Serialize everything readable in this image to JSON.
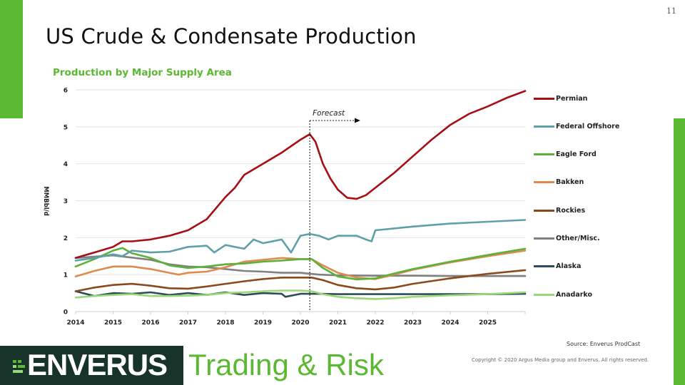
{
  "page_number": "11",
  "title": "US Crude & Condensate Production",
  "subtitle": "Production  by Major Supply Area",
  "source": "Source:  Enverus ProdCast",
  "copyright": "Copyright  © 2020 Argus Media group and Enverus.  All rights reserved.",
  "brand": {
    "logo_text": "ENVERUS",
    "tagline": "Trading & Risk",
    "colors": {
      "accent_green": "#5bb832",
      "dark_green": "#17332a"
    }
  },
  "chart_data": {
    "type": "line",
    "title": "Production  by Major Supply Area",
    "xlabel": "",
    "ylabel": "MMBbl/d",
    "xlim": [
      2014,
      2026
    ],
    "ylim": [
      0,
      6
    ],
    "x_ticks": [
      "2014",
      "2015",
      "2016",
      "2017",
      "2018",
      "2019",
      "2020",
      "2021",
      "2022",
      "2023",
      "2024",
      "2025"
    ],
    "y_ticks": [
      "0",
      "1",
      "2",
      "3",
      "4",
      "5",
      "6"
    ],
    "grid": true,
    "legend_position": "right",
    "annotation": {
      "text": "Forecast",
      "x": 2020.25
    },
    "series": [
      {
        "name": "Permian",
        "color": "#a50f15",
        "x": [
          2014,
          2014.5,
          2015,
          2015.25,
          2015.5,
          2016,
          2016.5,
          2017,
          2017.5,
          2018,
          2018.25,
          2018.5,
          2019,
          2019.5,
          2020,
          2020.25,
          2020.4,
          2020.6,
          2020.8,
          2021,
          2021.25,
          2021.5,
          2021.75,
          2022,
          2022.5,
          2023,
          2023.5,
          2024,
          2024.5,
          2025,
          2025.5,
          2026
        ],
        "y": [
          1.45,
          1.6,
          1.75,
          1.9,
          1.9,
          1.95,
          2.05,
          2.2,
          2.5,
          3.1,
          3.35,
          3.7,
          4.0,
          4.3,
          4.65,
          4.8,
          4.6,
          4.0,
          3.6,
          3.3,
          3.08,
          3.05,
          3.15,
          3.35,
          3.75,
          4.2,
          4.65,
          5.05,
          5.35,
          5.55,
          5.78,
          5.97
        ]
      },
      {
        "name": "Federal Offshore",
        "color": "#5fa0a8",
        "x": [
          2014,
          2014.5,
          2015,
          2015.25,
          2015.5,
          2016,
          2016.5,
          2017,
          2017.5,
          2017.7,
          2018,
          2018.5,
          2018.75,
          2019,
          2019.5,
          2019.75,
          2020,
          2020.25,
          2020.5,
          2020.75,
          2021,
          2021.5,
          2021.75,
          2021.9,
          2022,
          2022.5,
          2023,
          2024,
          2025,
          2026
        ],
        "y": [
          1.38,
          1.45,
          1.55,
          1.5,
          1.65,
          1.6,
          1.62,
          1.75,
          1.78,
          1.6,
          1.8,
          1.7,
          1.95,
          1.85,
          1.95,
          1.6,
          2.05,
          2.1,
          2.05,
          1.95,
          2.05,
          2.05,
          1.95,
          1.9,
          2.2,
          2.25,
          2.3,
          2.38,
          2.43,
          2.48
        ]
      },
      {
        "name": "Eagle Ford",
        "color": "#5bb13a",
        "x": [
          2014,
          2014.5,
          2015,
          2015.25,
          2015.5,
          2016,
          2016.5,
          2017,
          2017.5,
          2018,
          2018.5,
          2019,
          2019.5,
          2020,
          2020.3,
          2020.6,
          2021,
          2021.5,
          2022,
          2022.5,
          2023,
          2024,
          2025,
          2026
        ],
        "y": [
          1.22,
          1.42,
          1.65,
          1.72,
          1.58,
          1.45,
          1.25,
          1.18,
          1.22,
          1.28,
          1.3,
          1.35,
          1.38,
          1.42,
          1.42,
          1.18,
          0.95,
          0.87,
          0.9,
          1.03,
          1.15,
          1.35,
          1.53,
          1.7
        ]
      },
      {
        "name": "Bakken",
        "color": "#e08a50",
        "x": [
          2014,
          2014.5,
          2015,
          2015.5,
          2016,
          2016.5,
          2016.75,
          2017,
          2017.5,
          2018,
          2018.5,
          2019,
          2019.5,
          2020,
          2020.3,
          2020.6,
          2021,
          2021.5,
          2022,
          2022.5,
          2023,
          2024,
          2025,
          2026
        ],
        "y": [
          0.95,
          1.1,
          1.22,
          1.22,
          1.15,
          1.05,
          1.0,
          1.05,
          1.08,
          1.2,
          1.35,
          1.4,
          1.45,
          1.42,
          1.42,
          1.25,
          1.05,
          0.92,
          0.88,
          1.0,
          1.13,
          1.33,
          1.5,
          1.65
        ]
      },
      {
        "name": "Rockies",
        "color": "#8b4a1e",
        "x": [
          2014,
          2014.5,
          2015,
          2015.5,
          2016,
          2016.5,
          2017,
          2017.5,
          2018,
          2018.5,
          2019,
          2019.5,
          2020,
          2020.3,
          2020.6,
          2021,
          2021.5,
          2022,
          2022.5,
          2023,
          2024,
          2025,
          2026
        ],
        "y": [
          0.55,
          0.65,
          0.72,
          0.75,
          0.7,
          0.63,
          0.62,
          0.68,
          0.75,
          0.82,
          0.88,
          0.92,
          0.92,
          0.92,
          0.85,
          0.72,
          0.63,
          0.6,
          0.65,
          0.75,
          0.9,
          1.02,
          1.12
        ]
      },
      {
        "name": "Other/Misc.",
        "color": "#808080",
        "x": [
          2014,
          2015,
          2016,
          2016.5,
          2017,
          2017.5,
          2018,
          2018.5,
          2019,
          2019.5,
          2020,
          2020.5,
          2021,
          2022,
          2023,
          2024,
          2025,
          2026
        ],
        "y": [
          1.45,
          1.52,
          1.4,
          1.28,
          1.22,
          1.2,
          1.15,
          1.1,
          1.08,
          1.05,
          1.05,
          1.0,
          0.98,
          0.97,
          0.97,
          0.96,
          0.96,
          0.96
        ]
      },
      {
        "name": "Alaska",
        "color": "#2c4d55",
        "x": [
          2014,
          2014.5,
          2015,
          2015.5,
          2016,
          2016.5,
          2017,
          2017.5,
          2018,
          2018.5,
          2019,
          2019.5,
          2019.6,
          2020,
          2020.5,
          2021,
          2022,
          2023,
          2024,
          2025,
          2026
        ],
        "y": [
          0.55,
          0.42,
          0.5,
          0.48,
          0.52,
          0.45,
          0.5,
          0.45,
          0.52,
          0.45,
          0.5,
          0.48,
          0.4,
          0.48,
          0.48,
          0.47,
          0.47,
          0.47,
          0.47,
          0.47,
          0.48
        ]
      },
      {
        "name": "Anadarko",
        "color": "#98d878",
        "x": [
          2014,
          2014.5,
          2015,
          2015.5,
          2016,
          2016.5,
          2017,
          2017.5,
          2018,
          2018.5,
          2019,
          2019.5,
          2020,
          2020.3,
          2020.6,
          2021,
          2021.5,
          2022,
          2022.5,
          2023,
          2024,
          2025,
          2026
        ],
        "y": [
          0.38,
          0.42,
          0.45,
          0.47,
          0.42,
          0.42,
          0.43,
          0.45,
          0.5,
          0.52,
          0.55,
          0.57,
          0.57,
          0.55,
          0.47,
          0.4,
          0.36,
          0.34,
          0.36,
          0.4,
          0.44,
          0.47,
          0.52
        ]
      }
    ]
  }
}
